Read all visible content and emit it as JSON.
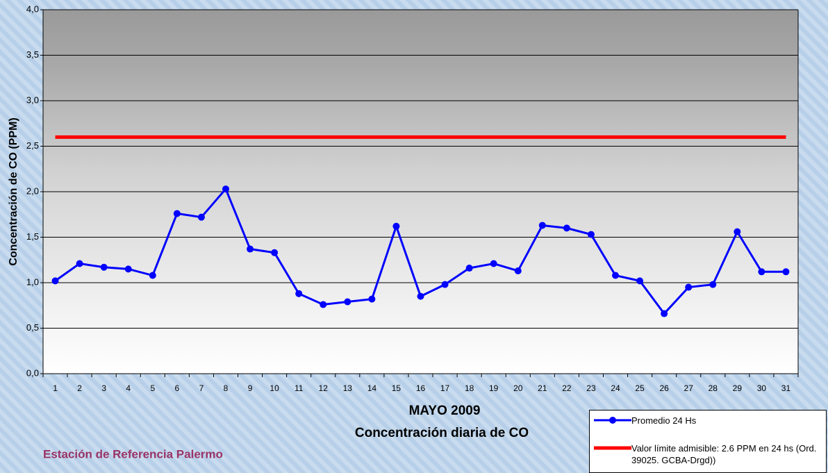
{
  "chart_data": {
    "type": "line",
    "xlabel": [
      "MAYO 2009",
      "Concentración diaria de CO"
    ],
    "ylabel": "Concentración de CO (PPM)",
    "annotation": "Estación de Referencia Palermo",
    "categories": [
      "1",
      "2",
      "3",
      "4",
      "5",
      "6",
      "7",
      "8",
      "9",
      "10",
      "11",
      "12",
      "13",
      "14",
      "15",
      "16",
      "17",
      "18",
      "19",
      "20",
      "21",
      "22",
      "23",
      "24",
      "25",
      "26",
      "27",
      "28",
      "29",
      "30",
      "31"
    ],
    "series": [
      {
        "name": "Promedio 24 Hs",
        "color": "#0000ff",
        "marker": true,
        "values": [
          1.02,
          1.21,
          1.17,
          1.15,
          1.08,
          1.76,
          1.72,
          2.03,
          1.37,
          1.33,
          0.88,
          0.76,
          0.79,
          0.82,
          1.62,
          0.85,
          0.98,
          1.16,
          1.21,
          1.13,
          1.63,
          1.6,
          1.53,
          1.08,
          1.02,
          0.66,
          0.95,
          0.98,
          1.56,
          1.12,
          1.12
        ]
      },
      {
        "name": "Valor límite admisible: 2.6 PPM en 24 hs (Ord. 39025. GCBA-Drgd))",
        "color": "#ff0000",
        "marker": false,
        "values": [
          2.6,
          2.6,
          2.6,
          2.6,
          2.6,
          2.6,
          2.6,
          2.6,
          2.6,
          2.6,
          2.6,
          2.6,
          2.6,
          2.6,
          2.6,
          2.6,
          2.6,
          2.6,
          2.6,
          2.6,
          2.6,
          2.6,
          2.6,
          2.6,
          2.6,
          2.6,
          2.6,
          2.6,
          2.6,
          2.6,
          2.6
        ]
      }
    ],
    "ylim": [
      0,
      4
    ],
    "yticks": [
      {
        "value": 0,
        "label": "0,0"
      },
      {
        "value": 0.5,
        "label": "0,5"
      },
      {
        "value": 1,
        "label": "1,0"
      },
      {
        "value": 1.5,
        "label": "1,5"
      },
      {
        "value": 2,
        "label": "2,0"
      },
      {
        "value": 2.5,
        "label": "2,5"
      },
      {
        "value": 3,
        "label": "3,0"
      },
      {
        "value": 3.5,
        "label": "3,5"
      },
      {
        "value": 4,
        "label": "4,0"
      }
    ],
    "grid": true
  }
}
